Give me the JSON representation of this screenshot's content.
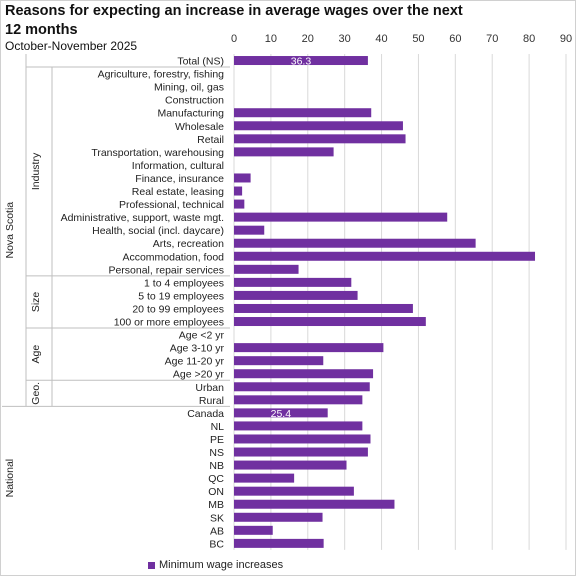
{
  "title": "Reasons for expecting an increase in average wages over the next 12 months",
  "subtitle": "October-November 2025",
  "colors": {
    "bar": "#7030a0",
    "grid": "#d9d9d9",
    "label_inside": "#ffffff"
  },
  "chart_data": {
    "type": "bar",
    "orientation": "horizontal",
    "xlim": [
      0,
      90
    ],
    "xticks": [
      "0",
      "10",
      "20",
      "30",
      "40",
      "50",
      "60",
      "70",
      "80",
      "90"
    ],
    "grid": true,
    "legend_position": "bottom",
    "series": [
      {
        "name": "Minimum wage increases"
      }
    ],
    "groups": [
      {
        "outer": "Nova Scotia",
        "inner": "",
        "rows": [
          {
            "label": "Total (NS)",
            "value": 36.3,
            "data_label": "36.3"
          }
        ]
      },
      {
        "outer": "Nova Scotia",
        "inner": "Industry",
        "rows": [
          {
            "label": "Agriculture, forestry, fishing",
            "value": 0
          },
          {
            "label": "Mining, oil, gas",
            "value": 0
          },
          {
            "label": "Construction",
            "value": 0
          },
          {
            "label": "Manufacturing",
            "value": 37.2
          },
          {
            "label": "Wholesale",
            "value": 45.8
          },
          {
            "label": "Retail",
            "value": 46.5
          },
          {
            "label": "Transportation, warehousing",
            "value": 27
          },
          {
            "label": "Information, cultural",
            "value": 0
          },
          {
            "label": "Finance, insurance",
            "value": 4.5
          },
          {
            "label": "Real estate, leasing",
            "value": 2.2
          },
          {
            "label": "Professional, technical",
            "value": 2.8
          },
          {
            "label": "Administrative, support, waste mgt.",
            "value": 57.8
          },
          {
            "label": "Health, social (incl. daycare)",
            "value": 8.2
          },
          {
            "label": "Arts, recreation",
            "value": 65.5
          },
          {
            "label": "Accommodation, food",
            "value": 81.6
          },
          {
            "label": "Personal, repair services",
            "value": 17.5
          }
        ]
      },
      {
        "outer": "Nova Scotia",
        "inner": "Size",
        "rows": [
          {
            "label": "1 to 4 employees",
            "value": 31.8
          },
          {
            "label": "5 to 19 employees",
            "value": 33.5
          },
          {
            "label": "20 to 99 employees",
            "value": 48.5
          },
          {
            "label": "100 or more employees",
            "value": 52
          }
        ]
      },
      {
        "outer": "Nova Scotia",
        "inner": "Age",
        "rows": [
          {
            "label": "Age <2 yr",
            "value": 0
          },
          {
            "label": "Age 3-10 yr",
            "value": 40.5
          },
          {
            "label": "Age 11-20 yr",
            "value": 24.2
          },
          {
            "label": "Age >20 yr",
            "value": 37.7
          }
        ]
      },
      {
        "outer": "Nova Scotia",
        "inner": "Geo.",
        "rows": [
          {
            "label": "Urban",
            "value": 36.8
          },
          {
            "label": "Rural",
            "value": 34.8
          }
        ]
      },
      {
        "outer": "National",
        "inner": "",
        "rows": [
          {
            "label": "Canada",
            "value": 25.4,
            "data_label": "25.4"
          },
          {
            "label": "NL",
            "value": 34.8
          },
          {
            "label": "PE",
            "value": 37
          },
          {
            "label": "NS",
            "value": 36.3
          },
          {
            "label": "NB",
            "value": 30.5
          },
          {
            "label": "QC",
            "value": 16.3
          },
          {
            "label": "ON",
            "value": 32.5
          },
          {
            "label": "MB",
            "value": 43.5
          },
          {
            "label": "SK",
            "value": 24
          },
          {
            "label": "AB",
            "value": 10.5
          },
          {
            "label": "BC",
            "value": 24.3
          }
        ]
      }
    ]
  }
}
